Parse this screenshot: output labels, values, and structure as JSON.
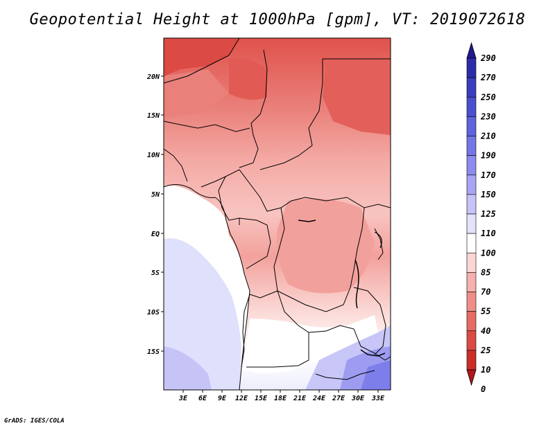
{
  "title": "Geopotential Height at 1000hPa [gpm], VT: 2019072618",
  "credit": "GrADS: IGES/COLA",
  "map": {
    "lat_labels": [
      "20N",
      "15N",
      "10N",
      "5N",
      "EQ",
      "5S",
      "10S",
      "15S"
    ],
    "lon_labels": [
      "3E",
      "6E",
      "9E",
      "12E",
      "15E",
      "18E",
      "21E",
      "24E",
      "27E",
      "30E",
      "33E"
    ]
  },
  "colorbar": {
    "levels": [
      "290",
      "270",
      "250",
      "230",
      "210",
      "190",
      "170",
      "150",
      "125",
      "110",
      "100",
      "85",
      "70",
      "55",
      "40",
      "25",
      "10",
      "0"
    ],
    "colors": [
      "#1f1a8f",
      "#2d2ca8",
      "#3b3dbc",
      "#4a4fce",
      "#5f63dc",
      "#7576e6",
      "#8c8bee",
      "#a7a5f3",
      "#c5c3f7",
      "#e2e2fb",
      "#ffffff",
      "#fcd6d4",
      "#f6b0ad",
      "#ef8e89",
      "#e76a64",
      "#dc4a44",
      "#cc2d28",
      "#b2161a"
    ]
  }
}
